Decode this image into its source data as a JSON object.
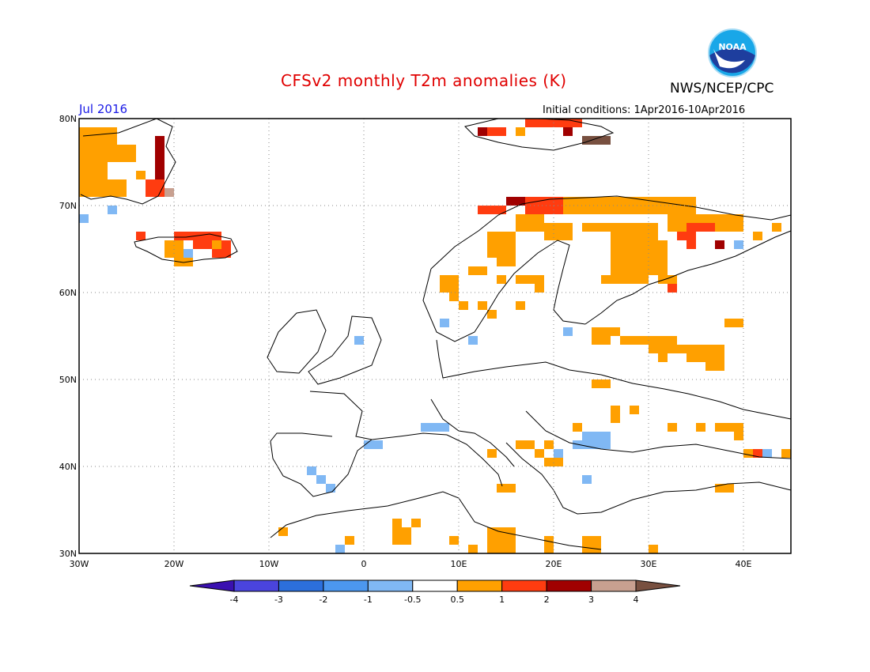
{
  "header": {
    "title": "CFSv2 monthly T2m anomalies (K)",
    "organization": "NWS/NCEP/CPC",
    "month": "Jul 2016",
    "initial_conditions": "Initial conditions: 1Apr2016-10Apr2016",
    "logo_text": "NOAA"
  },
  "map": {
    "lon_range": [
      -30,
      45
    ],
    "lat_range": [
      30,
      80
    ],
    "lon_ticks": [
      {
        "value": -30,
        "label": "30W"
      },
      {
        "value": -20,
        "label": "20W"
      },
      {
        "value": -10,
        "label": "10W"
      },
      {
        "value": 0,
        "label": "0"
      },
      {
        "value": 10,
        "label": "10E"
      },
      {
        "value": 20,
        "label": "20E"
      },
      {
        "value": 30,
        "label": "30E"
      },
      {
        "value": 40,
        "label": "40E"
      }
    ],
    "lat_ticks": [
      {
        "value": 30,
        "label": "30N"
      },
      {
        "value": 40,
        "label": "40N"
      },
      {
        "value": 50,
        "label": "50N"
      },
      {
        "value": 60,
        "label": "60N"
      },
      {
        "value": 70,
        "label": "70N"
      },
      {
        "value": 80,
        "label": "80N"
      }
    ],
    "grid": "dotted"
  },
  "legend": {
    "boundaries": [
      "-4",
      "-3",
      "-2",
      "-1",
      "-0.5",
      "0.5",
      "1",
      "2",
      "3",
      "4"
    ],
    "colors": [
      "#3a10b0",
      "#4a44dd",
      "#2c6fdc",
      "#4c97ef",
      "#80b8f4",
      "#ffffff",
      "#ffa000",
      "#ff3c10",
      "#a00000",
      "#c8a090",
      "#785040"
    ]
  },
  "chart_data": {
    "type": "heatmap",
    "title": "CFSv2 monthly T2m anomalies (K)",
    "units": "K",
    "cell_deg": 1,
    "cells": [
      [
        -30,
        79,
        75,
        4,
        "#ffa000"
      ],
      [
        -26,
        77,
        75,
        2,
        "#ffa000"
      ],
      [
        -30,
        75,
        71,
        3,
        "#ffa000"
      ],
      [
        -27,
        73,
        71,
        2,
        "#ffa000"
      ],
      [
        -24,
        74,
        73,
        1,
        "#ffa000"
      ],
      [
        -22,
        78,
        72,
        1,
        "#a00000"
      ],
      [
        -23,
        73,
        71,
        2,
        "#ff3c10"
      ],
      [
        -21,
        72,
        71,
        1,
        "#c8a090"
      ],
      [
        -30,
        69,
        68,
        1,
        "#80b8f4"
      ],
      [
        -27,
        70,
        69,
        1,
        "#80b8f4"
      ],
      [
        -24,
        67,
        66,
        1,
        "#ff3c10"
      ],
      [
        -20,
        67,
        66,
        5,
        "#ff3c10"
      ],
      [
        -21,
        66,
        65,
        2,
        "#ffa000"
      ],
      [
        -18,
        66,
        65,
        3,
        "#ff3c10"
      ],
      [
        -16,
        66,
        65,
        1,
        "#ffa000"
      ],
      [
        -15,
        66,
        65,
        1,
        "#ff3c10"
      ],
      [
        -21,
        65,
        64,
        3,
        "#ffa000"
      ],
      [
        -19,
        65,
        64,
        1,
        "#80b8f4"
      ],
      [
        -16,
        65,
        64,
        2,
        "#ff3c10"
      ],
      [
        -20,
        64,
        63,
        2,
        "#ffa000"
      ],
      [
        12,
        79,
        78,
        1,
        "#a00000"
      ],
      [
        13,
        79,
        78,
        2,
        "#ff3c10"
      ],
      [
        16,
        79,
        78,
        1,
        "#ffa000"
      ],
      [
        17,
        80,
        79,
        6,
        "#ff3c10"
      ],
      [
        21,
        79,
        78,
        1,
        "#a00000"
      ],
      [
        23,
        78,
        77,
        3,
        "#785040"
      ],
      [
        12,
        70,
        69,
        3,
        "#ff3c10"
      ],
      [
        15,
        71,
        70,
        2,
        "#a00000"
      ],
      [
        17,
        71,
        69,
        4,
        "#ff3c10"
      ],
      [
        16,
        69,
        67,
        3,
        "#ffa000"
      ],
      [
        13,
        67,
        64,
        3,
        "#ffa000"
      ],
      [
        14,
        64,
        63,
        2,
        "#ffa000"
      ],
      [
        11,
        63,
        62,
        2,
        "#ffa000"
      ],
      [
        21,
        71,
        69,
        14,
        "#ffa000"
      ],
      [
        19,
        68,
        66,
        3,
        "#ffa000"
      ],
      [
        23,
        68,
        67,
        3,
        "#ffa000"
      ],
      [
        26,
        68,
        61,
        4,
        "#ffa000"
      ],
      [
        30,
        68,
        66,
        1,
        "#ffa000"
      ],
      [
        29,
        66,
        62,
        3,
        "#ffa000"
      ],
      [
        32,
        69,
        67,
        8,
        "#ffa000"
      ],
      [
        34,
        68,
        67,
        3,
        "#ff3c10"
      ],
      [
        33,
        67,
        66,
        2,
        "#ff3c10"
      ],
      [
        34,
        66,
        65,
        1,
        "#ff3c10"
      ],
      [
        37,
        66,
        65,
        1,
        "#a00000"
      ],
      [
        39,
        66,
        65,
        1,
        "#80b8f4"
      ],
      [
        41,
        67,
        66,
        1,
        "#ffa000"
      ],
      [
        43,
        68,
        67,
        1,
        "#ffa000"
      ],
      [
        25,
        62,
        61,
        1,
        "#ffa000"
      ],
      [
        31,
        62,
        61,
        2,
        "#ffa000"
      ],
      [
        32,
        61,
        60,
        1,
        "#ff3c10"
      ],
      [
        16,
        62,
        61,
        3,
        "#ffa000"
      ],
      [
        18,
        61,
        60,
        1,
        "#ffa000"
      ],
      [
        8,
        62,
        60,
        2,
        "#ffa000"
      ],
      [
        9,
        60,
        59,
        1,
        "#ffa000"
      ],
      [
        10,
        59,
        58,
        1,
        "#ffa000"
      ],
      [
        12,
        59,
        58,
        1,
        "#ffa000"
      ],
      [
        13,
        58,
        57,
        1,
        "#ffa000"
      ],
      [
        14,
        62,
        61,
        1,
        "#ffa000"
      ],
      [
        16,
        59,
        58,
        1,
        "#ffa000"
      ],
      [
        8,
        57,
        56,
        1,
        "#80b8f4"
      ],
      [
        11,
        55,
        54,
        1,
        "#80b8f4"
      ],
      [
        21,
        56,
        55,
        1,
        "#80b8f4"
      ],
      [
        24,
        56,
        54,
        2,
        "#ffa000"
      ],
      [
        26,
        56,
        55,
        1,
        "#ffa000"
      ],
      [
        27,
        55,
        54,
        3,
        "#ffa000"
      ],
      [
        30,
        55,
        53,
        3,
        "#ffa000"
      ],
      [
        33,
        54,
        53,
        1,
        "#ffa000"
      ],
      [
        34,
        54,
        52,
        4,
        "#ffa000"
      ],
      [
        36,
        52,
        51,
        2,
        "#ffa000"
      ],
      [
        31,
        53,
        52,
        1,
        "#ffa000"
      ],
      [
        38,
        57,
        56,
        2,
        "#ffa000"
      ],
      [
        24,
        50,
        49,
        2,
        "#ffa000"
      ],
      [
        26,
        47,
        45,
        1,
        "#ffa000"
      ],
      [
        28,
        47,
        46,
        1,
        "#ffa000"
      ],
      [
        32,
        45,
        44,
        1,
        "#ffa000"
      ],
      [
        35,
        45,
        44,
        1,
        "#ffa000"
      ],
      [
        37,
        45,
        44,
        2,
        "#ffa000"
      ],
      [
        39,
        45,
        43,
        1,
        "#ffa000"
      ],
      [
        40,
        42,
        41,
        1,
        "#ffa000"
      ],
      [
        41,
        42,
        41,
        1,
        "#ff3c10"
      ],
      [
        42,
        42,
        41,
        1,
        "#80b8f4"
      ],
      [
        44,
        42,
        41,
        1,
        "#ffa000"
      ],
      [
        22,
        45,
        44,
        1,
        "#ffa000"
      ],
      [
        23,
        44,
        42,
        3,
        "#80b8f4"
      ],
      [
        22,
        43,
        42,
        1,
        "#80b8f4"
      ],
      [
        16,
        43,
        42,
        2,
        "#ffa000"
      ],
      [
        18,
        42,
        41,
        1,
        "#ffa000"
      ],
      [
        19,
        43,
        42,
        1,
        "#ffa000"
      ],
      [
        20,
        42,
        41,
        1,
        "#80b8f4"
      ],
      [
        19,
        41,
        40,
        1,
        "#ffa000"
      ],
      [
        20,
        41,
        40,
        1,
        "#ffa000"
      ],
      [
        13,
        42,
        41,
        1,
        "#ffa000"
      ],
      [
        14,
        38,
        37,
        2,
        "#ffa000"
      ],
      [
        23,
        39,
        38,
        1,
        "#80b8f4"
      ],
      [
        37,
        38,
        37,
        2,
        "#ffa000"
      ],
      [
        6,
        45,
        44,
        3,
        "#80b8f4"
      ],
      [
        0,
        43,
        42,
        2,
        "#80b8f4"
      ],
      [
        -6,
        40,
        39,
        1,
        "#80b8f4"
      ],
      [
        -5,
        39,
        38,
        1,
        "#80b8f4"
      ],
      [
        -4,
        38,
        37,
        1,
        "#80b8f4"
      ],
      [
        -1,
        55,
        54,
        1,
        "#80b8f4"
      ],
      [
        -9,
        33,
        32,
        1,
        "#ffa000"
      ],
      [
        -3,
        31,
        30,
        1,
        "#80b8f4"
      ],
      [
        -2,
        32,
        31,
        1,
        "#ffa000"
      ],
      [
        3,
        34,
        31,
        1,
        "#ffa000"
      ],
      [
        4,
        33,
        31,
        1,
        "#ffa000"
      ],
      [
        5,
        34,
        33,
        1,
        "#ffa000"
      ],
      [
        9,
        32,
        31,
        1,
        "#ffa000"
      ],
      [
        11,
        31,
        30,
        1,
        "#ffa000"
      ],
      [
        13,
        33,
        30,
        3,
        "#ffa000"
      ],
      [
        19,
        32,
        30,
        1,
        "#ffa000"
      ],
      [
        23,
        32,
        30,
        2,
        "#ffa000"
      ],
      [
        30,
        31,
        30,
        1,
        "#ffa000"
      ]
    ]
  }
}
